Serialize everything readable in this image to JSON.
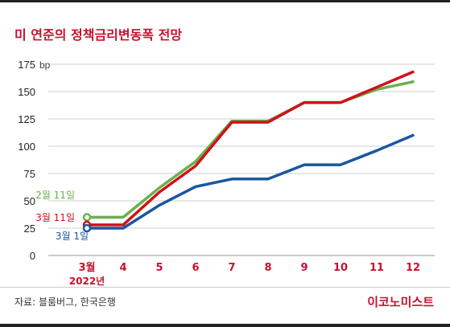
{
  "title": "미 연준의 정책금리변동폭 전망",
  "source": "자료: 블룸버그, 한국은행",
  "brand": "이코노미스트",
  "colors": {
    "accent": "#c8102e",
    "red_series": "#d0111b",
    "green_series": "#6ab04c",
    "blue_series": "#1a56a0",
    "grid": "#cfcfcf"
  },
  "chart_data": {
    "type": "line",
    "x_labels": [
      "3월",
      "4",
      "5",
      "6",
      "7",
      "8",
      "9",
      "10",
      "11",
      "12"
    ],
    "x_sublabel": "2022년",
    "y_ticks": [
      0,
      25,
      50,
      75,
      100,
      125,
      150,
      175
    ],
    "y_unit": "bp",
    "ylim": [
      0,
      175
    ],
    "grid": true,
    "series": [
      {
        "name": "2월 11일",
        "color": "#6ab04c",
        "values": [
          35,
          35,
          62,
          86,
          123,
          123,
          140,
          140,
          152,
          159
        ]
      },
      {
        "name": "3월 11일",
        "color": "#d0111b",
        "values": [
          28,
          28,
          58,
          82,
          122,
          122,
          140,
          140,
          154,
          168
        ]
      },
      {
        "name": "3월 1일",
        "color": "#1a56a0",
        "values": [
          25,
          25,
          46,
          63,
          70,
          70,
          83,
          83,
          96,
          110
        ]
      }
    ]
  }
}
